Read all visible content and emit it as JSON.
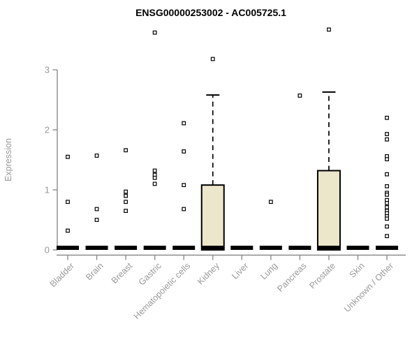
{
  "page": {
    "background": "#ffffff"
  },
  "chart_data": {
    "type": "boxplot",
    "title": "ENSG00000253002 - AC005725.1",
    "ylabel": "Expression",
    "xlabel": "",
    "yticks": [
      0,
      1,
      2,
      3
    ],
    "ylim": [
      0,
      3.8
    ],
    "grid": false,
    "legend": false,
    "box_fill": "#ECE7CB",
    "box_stroke": "#000000",
    "median_color": "#000000",
    "outlier_marker": "open-square",
    "axis_color": "#8C8C8C",
    "text_color": "#999999",
    "categories": [
      "Bladder",
      "Brain",
      "Breast",
      "Gastric",
      "Hematopoietic cells",
      "Kidney",
      "Liver",
      "Lung",
      "Pancreas",
      "Prostate",
      "Skin",
      "Unknown / Other"
    ],
    "series": [
      {
        "name": "Bladder",
        "q1": 0,
        "median": 0,
        "q3": 0,
        "whisker_low": 0,
        "whisker_high": 0,
        "outliers": [
          1.55,
          0.8,
          0.32
        ]
      },
      {
        "name": "Brain",
        "q1": 0,
        "median": 0,
        "q3": 0,
        "whisker_low": 0,
        "whisker_high": 0,
        "outliers": [
          1.57,
          0.68,
          0.5
        ]
      },
      {
        "name": "Breast",
        "q1": 0,
        "median": 0,
        "q3": 0,
        "whisker_low": 0,
        "whisker_high": 0,
        "outliers": [
          1.66,
          0.97,
          0.9,
          0.8,
          0.65
        ]
      },
      {
        "name": "Gastric",
        "q1": 0,
        "median": 0,
        "q3": 0,
        "whisker_low": 0,
        "whisker_high": 0,
        "outliers": [
          3.62,
          1.32,
          1.25,
          1.2,
          1.1
        ]
      },
      {
        "name": "Hematopoietic cells",
        "q1": 0,
        "median": 0,
        "q3": 0,
        "whisker_low": 0,
        "whisker_high": 0,
        "outliers": [
          2.11,
          1.64,
          1.08,
          0.68
        ]
      },
      {
        "name": "Kidney",
        "q1": 0,
        "median": 0,
        "q3": 1.08,
        "whisker_low": 0,
        "whisker_high": 2.58,
        "outliers": [
          3.18
        ]
      },
      {
        "name": "Liver",
        "q1": 0,
        "median": 0,
        "q3": 0,
        "whisker_low": 0,
        "whisker_high": 0,
        "outliers": []
      },
      {
        "name": "Lung",
        "q1": 0,
        "median": 0,
        "q3": 0,
        "whisker_low": 0,
        "whisker_high": 0,
        "outliers": [
          0.8
        ]
      },
      {
        "name": "Pancreas",
        "q1": 0,
        "median": 0,
        "q3": 0,
        "whisker_low": 0,
        "whisker_high": 0,
        "outliers": [
          2.57
        ]
      },
      {
        "name": "Prostate",
        "q1": 0,
        "median": 0,
        "q3": 1.32,
        "whisker_low": 0,
        "whisker_high": 2.63,
        "outliers": [
          3.67
        ]
      },
      {
        "name": "Skin",
        "q1": 0,
        "median": 0,
        "q3": 0,
        "whisker_low": 0,
        "whisker_high": 0,
        "outliers": []
      },
      {
        "name": "Unknown / Other",
        "q1": 0,
        "median": 0,
        "q3": 0,
        "whisker_low": 0,
        "whisker_high": 0,
        "outliers": [
          2.2,
          1.93,
          1.84,
          1.56,
          1.51,
          1.26,
          1.06,
          0.95,
          0.92,
          0.83,
          0.78,
          0.71,
          0.65,
          0.61,
          0.56,
          0.52,
          0.39,
          0.23
        ]
      }
    ]
  }
}
